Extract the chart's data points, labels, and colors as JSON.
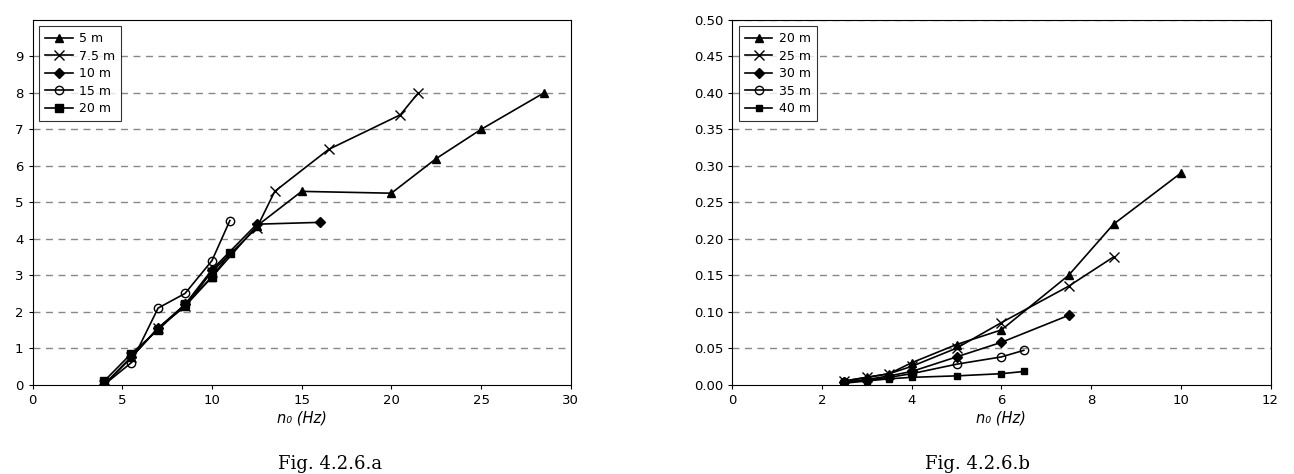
{
  "chart_a": {
    "xlabel": "n₀ (Hz)",
    "xlim": [
      0,
      30
    ],
    "ylim": [
      0,
      10
    ],
    "yticks": [
      0,
      1,
      2,
      3,
      4,
      5,
      6,
      7,
      8,
      9
    ],
    "xticks": [
      0,
      5,
      10,
      15,
      20,
      25,
      30
    ],
    "caption": "Fig. 4.2.6.a",
    "series": [
      {
        "label": "5 m",
        "marker": "^",
        "markersize": 6,
        "fillstyle": "full",
        "x": [
          4.0,
          5.5,
          7.0,
          8.5,
          10.0,
          12.5,
          15.0,
          20.0,
          22.5,
          25.0,
          28.5
        ],
        "y": [
          0.0,
          0.75,
          1.55,
          2.15,
          2.95,
          4.35,
          5.3,
          5.25,
          6.2,
          7.0,
          8.0
        ]
      },
      {
        "label": "7.5 m",
        "marker": "x",
        "markersize": 7,
        "fillstyle": "full",
        "x": [
          4.0,
          5.5,
          7.0,
          8.5,
          10.0,
          12.5,
          13.5,
          16.5,
          20.5,
          21.5
        ],
        "y": [
          0.0,
          0.75,
          1.55,
          2.15,
          3.1,
          4.3,
          5.3,
          6.45,
          7.4,
          8.0
        ]
      },
      {
        "label": "10 m",
        "marker": "D",
        "markersize": 5,
        "fillstyle": "full",
        "x": [
          4.0,
          5.5,
          7.0,
          8.5,
          10.0,
          12.5,
          16.0
        ],
        "y": [
          0.0,
          0.75,
          1.55,
          2.2,
          3.15,
          4.4,
          4.45
        ]
      },
      {
        "label": "15 m",
        "marker": "o",
        "markersize": 6,
        "fillstyle": "none",
        "x": [
          4.0,
          5.5,
          7.0,
          8.5,
          10.0,
          11.0
        ],
        "y": [
          0.0,
          0.6,
          2.1,
          2.5,
          3.4,
          4.5
        ]
      },
      {
        "label": "20 m",
        "marker": "s",
        "markersize": 6,
        "fillstyle": "full",
        "x": [
          4.0,
          5.5,
          7.0,
          8.5,
          10.0,
          11.0
        ],
        "y": [
          0.1,
          0.85,
          1.5,
          2.2,
          2.95,
          3.6
        ]
      }
    ],
    "grid_yticks": [
      1,
      2,
      3,
      4,
      5,
      6,
      7,
      8,
      9
    ]
  },
  "chart_b": {
    "xlabel": "n₀ (Hz)",
    "xlim": [
      0,
      12
    ],
    "ylim": [
      0,
      0.5
    ],
    "yticks": [
      0.0,
      0.05,
      0.1,
      0.15,
      0.2,
      0.25,
      0.3,
      0.35,
      0.4,
      0.45,
      0.5
    ],
    "xticks": [
      0,
      2,
      4,
      6,
      8,
      10,
      12
    ],
    "caption": "Fig. 4.2.6.b",
    "series": [
      {
        "label": "20 m",
        "marker": "^",
        "markersize": 6,
        "fillstyle": "full",
        "x": [
          2.5,
          3.0,
          3.5,
          4.0,
          5.0,
          6.0,
          7.5,
          8.5,
          10.0
        ],
        "y": [
          0.005,
          0.01,
          0.015,
          0.03,
          0.055,
          0.075,
          0.15,
          0.22,
          0.29
        ]
      },
      {
        "label": "25 m",
        "marker": "x",
        "markersize": 7,
        "fillstyle": "full",
        "x": [
          2.5,
          3.0,
          3.5,
          4.0,
          5.0,
          6.0,
          7.5,
          8.5
        ],
        "y": [
          0.005,
          0.01,
          0.015,
          0.025,
          0.05,
          0.085,
          0.135,
          0.175
        ]
      },
      {
        "label": "30 m",
        "marker": "D",
        "markersize": 5,
        "fillstyle": "full",
        "x": [
          2.5,
          3.0,
          3.5,
          4.0,
          5.0,
          6.0,
          7.5
        ],
        "y": [
          0.004,
          0.007,
          0.012,
          0.018,
          0.038,
          0.058,
          0.095
        ]
      },
      {
        "label": "35 m",
        "marker": "o",
        "markersize": 6,
        "fillstyle": "none",
        "x": [
          2.5,
          3.0,
          3.5,
          4.0,
          5.0,
          6.0,
          6.5
        ],
        "y": [
          0.003,
          0.006,
          0.01,
          0.015,
          0.028,
          0.038,
          0.047
        ]
      },
      {
        "label": "40 m",
        "marker": "s",
        "markersize": 5,
        "fillstyle": "full",
        "x": [
          2.5,
          3.0,
          3.5,
          4.0,
          5.0,
          6.0,
          6.5
        ],
        "y": [
          0.002,
          0.005,
          0.008,
          0.01,
          0.012,
          0.015,
          0.018
        ]
      }
    ],
    "grid_yticks": [
      0.05,
      0.1,
      0.15,
      0.2,
      0.25,
      0.3,
      0.35,
      0.4,
      0.45,
      0.5
    ]
  },
  "bg_color": "#ffffff",
  "line_color": "#000000",
  "caption_fontsize": 13,
  "grid_dash_seq": [
    5,
    4
  ],
  "grid_color": "#888888",
  "grid_linewidth": 1.0
}
